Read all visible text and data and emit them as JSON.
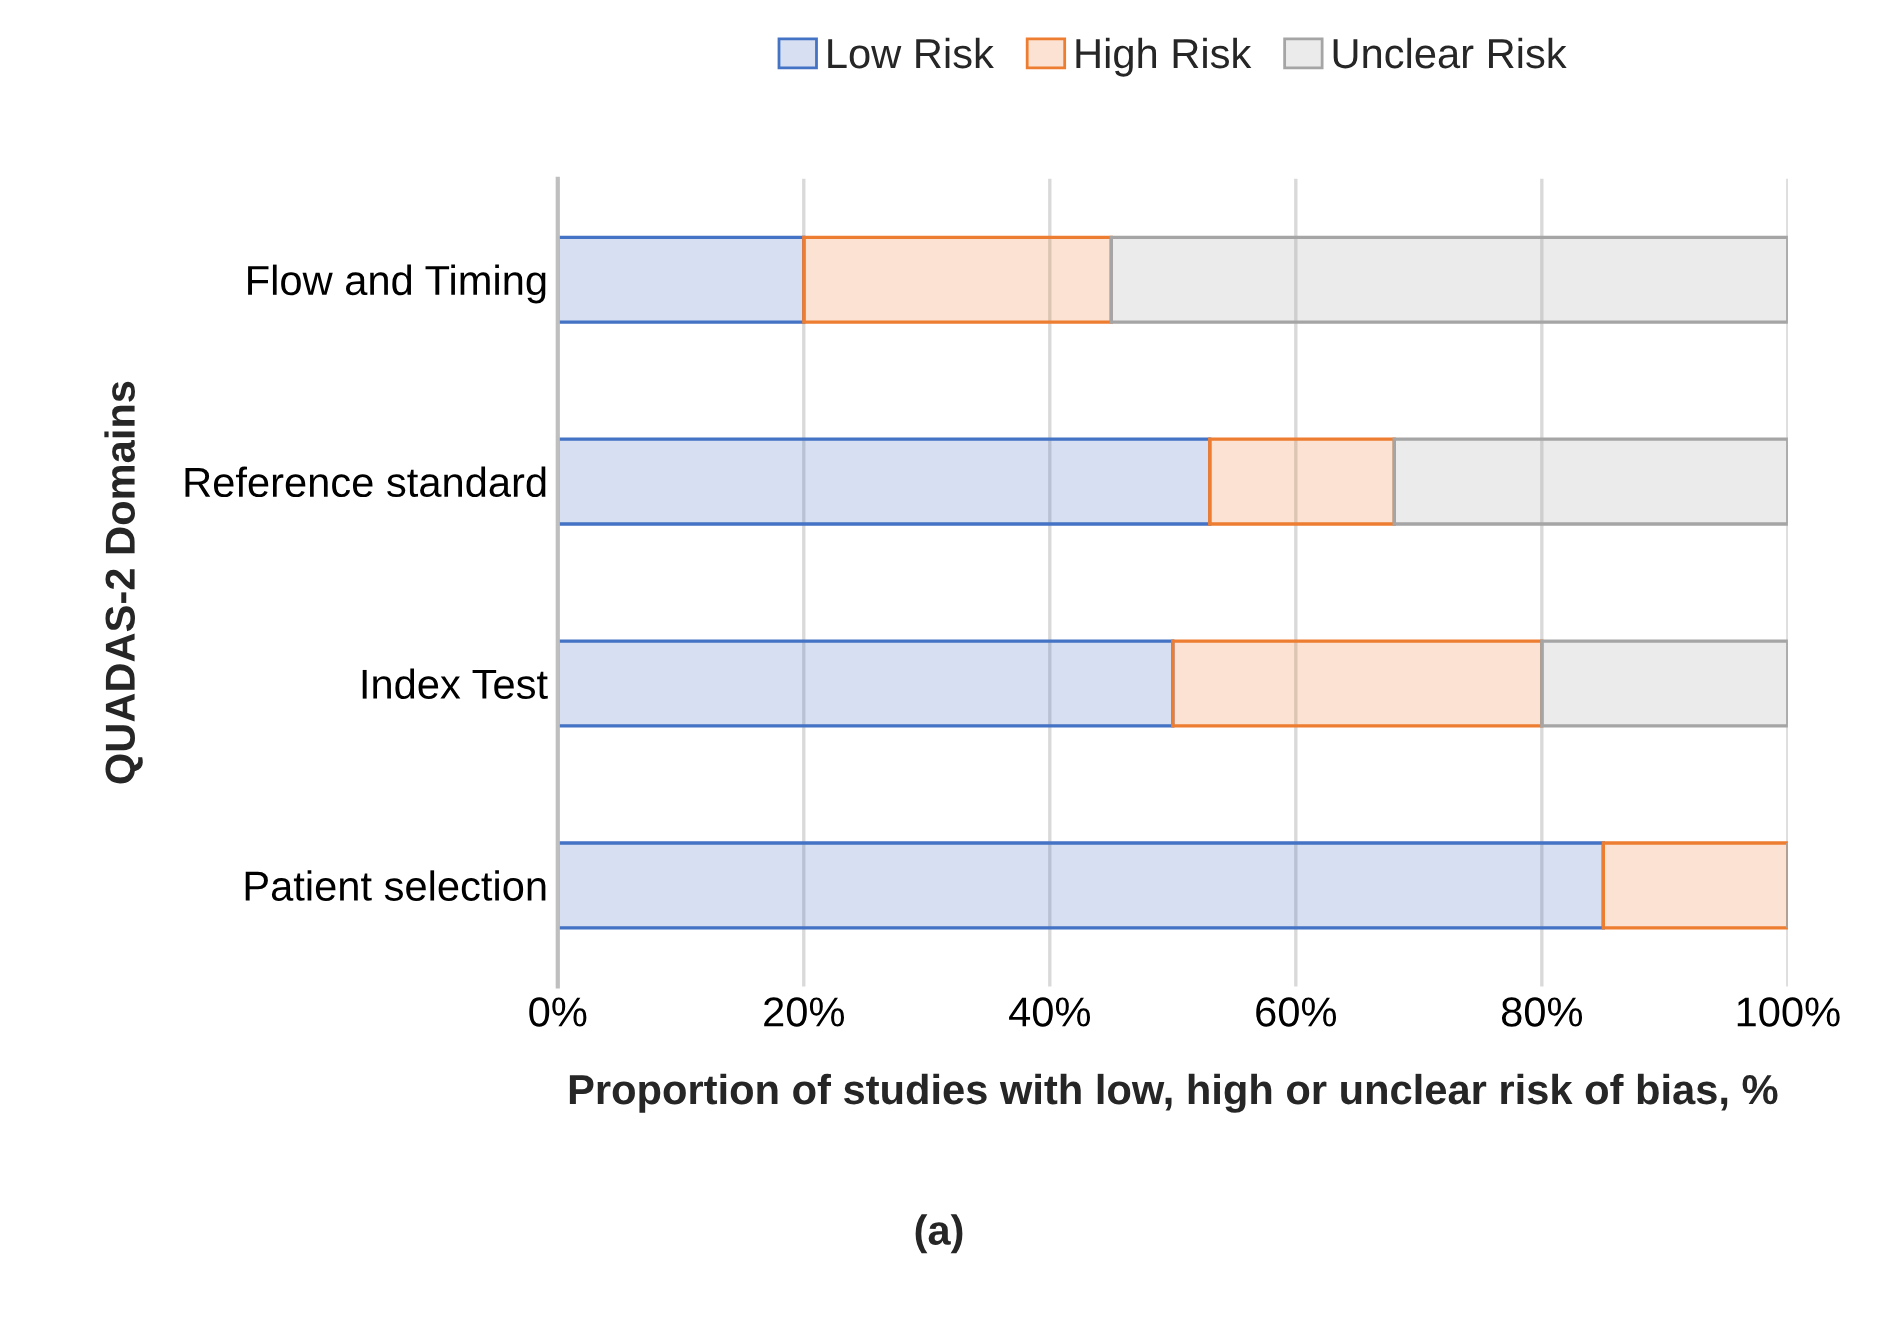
{
  "chart_data": {
    "type": "bar",
    "orientation": "horizontal",
    "stacked": true,
    "categories": [
      "Flow and Timing",
      "Reference standard",
      "Index Test",
      "Patient selection"
    ],
    "series": [
      {
        "name": "Low Risk",
        "color": "#4472c4",
        "values": [
          20,
          53,
          50,
          85
        ]
      },
      {
        "name": "High Risk",
        "color": "#ed7d31",
        "values": [
          25,
          15,
          30,
          15
        ]
      },
      {
        "name": "Unclear Risk",
        "color": "#a5a5a5",
        "values": [
          55,
          32,
          20,
          0
        ]
      }
    ],
    "xlim": [
      0,
      100
    ],
    "xticks": [
      {
        "value": 0,
        "label": "0%"
      },
      {
        "value": 20,
        "label": "20%"
      },
      {
        "value": 40,
        "label": "40%"
      },
      {
        "value": 60,
        "label": "60%"
      },
      {
        "value": 80,
        "label": "80%"
      },
      {
        "value": 100,
        "label": "100%"
      }
    ],
    "xlabel": "Proportion of studies with low, high or unclear risk of bias, %",
    "ylabel": "QUADAS-2 Domains",
    "annotations": [
      "(a)"
    ],
    "grid": "x",
    "legend": "top"
  }
}
